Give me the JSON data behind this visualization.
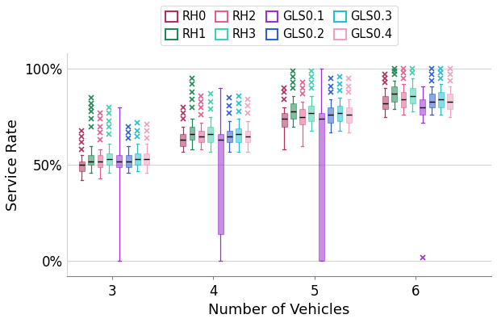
{
  "xlabel": "Number of Vehicles",
  "ylabel": "Service Rate",
  "yticks": [
    0,
    50,
    100
  ],
  "ytick_labels": [
    "0%",
    "50%",
    "100%"
  ],
  "xticks": [
    3,
    4,
    5,
    6
  ],
  "series": [
    "RH0",
    "RH1",
    "RH2",
    "RH3",
    "GLS0.1",
    "GLS0.2",
    "GLS0.3",
    "GLS0.4"
  ],
  "colors": {
    "RH0": "#b03060",
    "RH1": "#228855",
    "RH2": "#e06090",
    "RH3": "#40d0b0",
    "GLS0.1": "#9b30d0",
    "GLS0.2": "#3060d0",
    "GLS0.3": "#20c0d0",
    "GLS0.4": "#f0a0c0"
  },
  "box_data": {
    "RH0": {
      "3": {
        "q1": 47,
        "median": 50,
        "q3": 52,
        "whislo": 42,
        "whishi": 55,
        "fliers": [
          58,
          62,
          65,
          68
        ]
      },
      "4": {
        "q1": 60,
        "median": 63,
        "q3": 66,
        "whislo": 57,
        "whishi": 70,
        "fliers": [
          74,
          77,
          80
        ]
      },
      "5": {
        "q1": 70,
        "median": 74,
        "q3": 77,
        "whislo": 58,
        "whishi": 80,
        "fliers": [
          84,
          88,
          90
        ]
      },
      "6": {
        "q1": 79,
        "median": 82,
        "q3": 86,
        "whislo": 75,
        "whishi": 90,
        "fliers": [
          93,
          95,
          97
        ]
      }
    },
    "RH1": {
      "3": {
        "q1": 50,
        "median": 52,
        "q3": 55,
        "whislo": 46,
        "whishi": 60,
        "fliers": [
          70,
          74,
          78,
          80,
          82,
          85
        ]
      },
      "4": {
        "q1": 63,
        "median": 66,
        "q3": 70,
        "whislo": 58,
        "whishi": 74,
        "fliers": [
          80,
          84,
          88,
          92,
          95
        ]
      },
      "5": {
        "q1": 74,
        "median": 78,
        "q3": 82,
        "whislo": 70,
        "whishi": 86,
        "fliers": [
          90,
          93,
          96,
          99
        ]
      },
      "6": {
        "q1": 83,
        "median": 87,
        "q3": 91,
        "whislo": 79,
        "whishi": 94,
        "fliers": [
          97,
          99,
          100
        ]
      }
    },
    "RH2": {
      "3": {
        "q1": 49,
        "median": 52,
        "q3": 55,
        "whislo": 43,
        "whishi": 58,
        "fliers": [
          63,
          67,
          70,
          74,
          77
        ]
      },
      "4": {
        "q1": 62,
        "median": 65,
        "q3": 68,
        "whislo": 58,
        "whishi": 72,
        "fliers": [
          76,
          80,
          83,
          86
        ]
      },
      "5": {
        "q1": 71,
        "median": 75,
        "q3": 79,
        "whislo": 60,
        "whishi": 83,
        "fliers": [
          87,
          90,
          93
        ]
      },
      "6": {
        "q1": 80,
        "median": 84,
        "q3": 88,
        "whislo": 76,
        "whishi": 92,
        "fliers": [
          95,
          98,
          100
        ]
      }
    },
    "RH3": {
      "3": {
        "q1": 50,
        "median": 53,
        "q3": 56,
        "whislo": 46,
        "whishi": 61,
        "fliers": [
          66,
          70,
          73,
          77,
          80
        ]
      },
      "4": {
        "q1": 62,
        "median": 66,
        "q3": 70,
        "whislo": 57,
        "whishi": 75,
        "fliers": [
          79,
          83,
          87
        ]
      },
      "5": {
        "q1": 73,
        "median": 77,
        "q3": 81,
        "whislo": 68,
        "whishi": 86,
        "fliers": [
          90,
          93,
          96,
          99
        ]
      },
      "6": {
        "q1": 82,
        "median": 86,
        "q3": 90,
        "whislo": 78,
        "whishi": 95,
        "fliers": [
          98,
          100
        ]
      }
    },
    "GLS0.1": {
      "3": {
        "q1": 49,
        "median": 52,
        "q3": 55,
        "whislo": 0,
        "whishi": 80,
        "fliers": []
      },
      "4": {
        "q1": 14,
        "median": 63,
        "q3": 66,
        "whislo": 0,
        "whishi": 90,
        "fliers": []
      },
      "5": {
        "q1": 0,
        "median": 74,
        "q3": 77,
        "whislo": 0,
        "whishi": 100,
        "fliers": []
      },
      "6": {
        "q1": 76,
        "median": 80,
        "q3": 84,
        "whislo": 72,
        "whishi": 91,
        "fliers": [
          2
        ]
      }
    },
    "GLS0.2": {
      "3": {
        "q1": 49,
        "median": 52,
        "q3": 55,
        "whislo": 46,
        "whishi": 60,
        "fliers": [
          64,
          67,
          70
        ]
      },
      "4": {
        "q1": 62,
        "median": 65,
        "q3": 68,
        "whislo": 57,
        "whishi": 73,
        "fliers": [
          77,
          81,
          85
        ]
      },
      "5": {
        "q1": 72,
        "median": 76,
        "q3": 80,
        "whislo": 67,
        "whishi": 84,
        "fliers": [
          88,
          91,
          95
        ]
      },
      "6": {
        "q1": 80,
        "median": 83,
        "q3": 87,
        "whislo": 76,
        "whishi": 91,
        "fliers": [
          94,
          97,
          100
        ]
      }
    },
    "GLS0.3": {
      "3": {
        "q1": 50,
        "median": 53,
        "q3": 56,
        "whislo": 47,
        "whishi": 61,
        "fliers": [
          65,
          68,
          72
        ]
      },
      "4": {
        "q1": 62,
        "median": 66,
        "q3": 69,
        "whislo": 57,
        "whishi": 74,
        "fliers": [
          78,
          82,
          86
        ]
      },
      "5": {
        "q1": 73,
        "median": 77,
        "q3": 81,
        "whislo": 68,
        "whishi": 85,
        "fliers": [
          89,
          92,
          96
        ]
      },
      "6": {
        "q1": 80,
        "median": 84,
        "q3": 88,
        "whislo": 76,
        "whishi": 92,
        "fliers": [
          95,
          98,
          100
        ]
      }
    },
    "GLS0.4": {
      "3": {
        "q1": 50,
        "median": 53,
        "q3": 56,
        "whislo": 46,
        "whishi": 61,
        "fliers": [
          64,
          68,
          71
        ]
      },
      "4": {
        "q1": 62,
        "median": 65,
        "q3": 68,
        "whislo": 57,
        "whishi": 73,
        "fliers": [
          77,
          81,
          84
        ]
      },
      "5": {
        "q1": 72,
        "median": 76,
        "q3": 80,
        "whislo": 67,
        "whishi": 84,
        "fliers": [
          88,
          91,
          95
        ]
      },
      "6": {
        "q1": 79,
        "median": 83,
        "q3": 87,
        "whislo": 75,
        "whishi": 91,
        "fliers": [
          94,
          97,
          100
        ]
      }
    }
  },
  "group_positions": [
    3,
    4,
    5,
    6
  ],
  "box_width": 0.055,
  "group_offsets": [
    -0.3,
    -0.21,
    -0.12,
    -0.03,
    0.07,
    0.16,
    0.25,
    0.34
  ]
}
